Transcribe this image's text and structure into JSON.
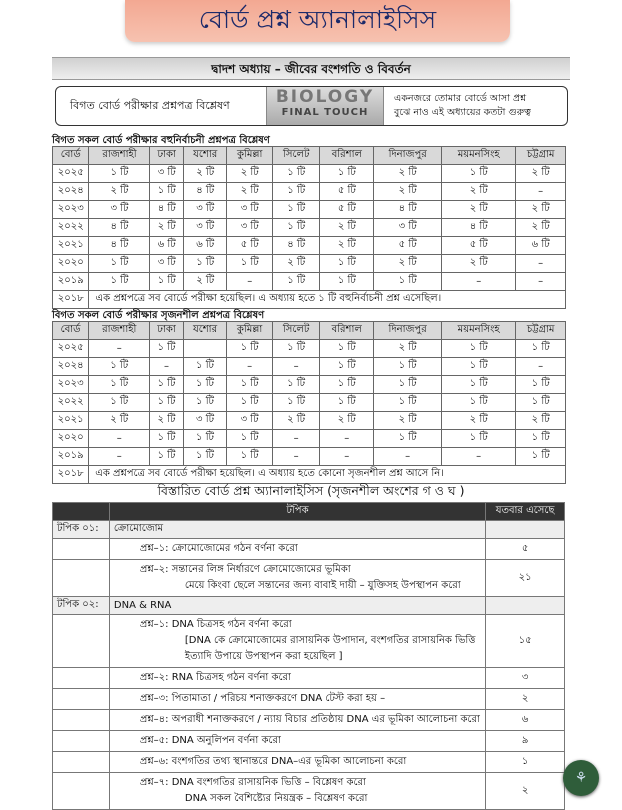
{
  "title": "বোর্ড প্রশ্ন অ্যানালাইসিস",
  "chapter": "দ্বাদশ অধ্যায় – জীবের বংশগতি ও বিবর্তন",
  "info": {
    "left": "বিগত বোর্ড পরীক্ষার  প্রশ্নপত্র বিশ্লেষণ",
    "logo_top": "BIOLOGY",
    "logo_bottom": "FINAL TOUCH",
    "right_line1": "একনজরে তোমার বোর্ডে আসা প্রশ্ন",
    "right_line2": "বুঝে নাও এই অধ্যায়ের কতটা গুরুত্ব"
  },
  "headers": [
    "বোর্ড",
    "রাজশাহী",
    "ঢাকা",
    "যশোর",
    "কুমিল্লা",
    "সিলেট",
    "বরিশাল",
    "দিনাজপুর",
    "ময়মনসিংহ",
    "চট্টগ্রাম"
  ],
  "mcq": {
    "caption": "বিগত সকল বোর্ড পরীক্ষার বহুনির্বাচনী প্রশ্নপত্র বিশ্লেষণ",
    "rows": [
      [
        "২০২৫",
        "১ টি",
        "৩ টি",
        "২ টি",
        "২ টি",
        "১ টি",
        "১ টি",
        "২ টি",
        "১ টি",
        "২ টি"
      ],
      [
        "২০২৪",
        "২ টি",
        "১ টি",
        "৪ টি",
        "২ টি",
        "১ টি",
        "৫ টি",
        "২ টি",
        "২ টি",
        "–"
      ],
      [
        "২০২৩",
        "৩ টি",
        "৪ টি",
        "৩ টি",
        "৩ টি",
        "১ টি",
        "৫ টি",
        "৪ টি",
        "২ টি",
        "২ টি"
      ],
      [
        "২০২২",
        "৪ টি",
        "২ টি",
        "৩ টি",
        "৩ টি",
        "১ টি",
        "২ টি",
        "৩ টি",
        "৪ টি",
        "২ টি"
      ],
      [
        "২০২১",
        "৪ টি",
        "৬ টি",
        "৬ টি",
        "৫ টি",
        "৪ টি",
        "২ টি",
        "৫ টি",
        "৫ টি",
        "৬ টি"
      ],
      [
        "২০২০",
        "১ টি",
        "৩ টি",
        "১ টি",
        "১ টি",
        "২ টি",
        "১ টি",
        "২ টি",
        "২ টি",
        "–"
      ],
      [
        "২০১৯",
        "১ টি",
        "১ টি",
        "২ টি",
        "–",
        "১ টি",
        "১ টি",
        "১ টি",
        "–",
        "–"
      ]
    ],
    "last_year": "২০১৮",
    "last_note": "এক প্রশ্নপত্রে সব বোর্ডে পরীক্ষা হয়েছিল। এ অধ্যায় হতে ১ টি বহুনির্বাচনী প্রশ্ন এসেছিল।"
  },
  "cq": {
    "caption": "বিগত সকল বোর্ড পরীক্ষার সৃজনশীল প্রশ্নপত্র বিশ্লেষণ",
    "rows": [
      [
        "২০২৫",
        "–",
        "১ টি",
        "",
        "১ টি",
        "১ টি",
        "১ টি",
        "২ টি",
        "১ টি",
        "১ টি"
      ],
      [
        "২০২৪",
        "১ টি",
        "–",
        "১ টি",
        "–",
        "–",
        "১ টি",
        "১ টি",
        "১ টি",
        "–"
      ],
      [
        "২০২৩",
        "১ টি",
        "১ টি",
        "১ টি",
        "১ টি",
        "১ টি",
        "১ টি",
        "১ টি",
        "১ টি",
        "১ টি"
      ],
      [
        "২০২২",
        "১ টি",
        "১ টি",
        "১ টি",
        "১ টি",
        "১ টি",
        "১ টি",
        "১ টি",
        "১ টি",
        "১ টি"
      ],
      [
        "২০২১",
        "২ টি",
        "২ টি",
        "৩ টি",
        "৩ টি",
        "২ টি",
        "২ টি",
        "২ টি",
        "২ টি",
        "২ টি"
      ],
      [
        "২০২০",
        "–",
        "১ টি",
        "১ টি",
        "১ টি",
        "–",
        "–",
        "১ টি",
        "১ টি",
        "১ টি"
      ],
      [
        "২০১৯",
        "–",
        "১ টি",
        "১ টি",
        "১ টি",
        "–",
        "–",
        "–",
        "–",
        "১ টি"
      ]
    ],
    "last_year": "২০১৮",
    "last_note": "এক প্রশ্নপত্রে সব বোর্ডে পরীক্ষা হয়েছিল। এ অধ্যায় হতে কোনো সৃজনশীল প্রশ্ন আসে নি।"
  },
  "detail": {
    "title": "বিস্তারিত বোর্ড প্রশ্ন অ্যানালাইসিস (সৃজনশীল অংশের গ ও ঘ )",
    "col_topic": "টপিক",
    "col_count": "যতবার এসেছে",
    "topics": [
      {
        "label": "টপিক ০১:",
        "name": "ক্রোমোজোম",
        "questions": [
          {
            "text": "প্রশ্ন–১:  ক্রোমোজোমের গঠন বর্ণনা করো",
            "sub": "",
            "count": "৫"
          },
          {
            "text": "প্রশ্ন–২:  সন্তানের লিঙ্গ নির্ধারণে ক্রোমোজোমের ভূমিকা",
            "sub": "মেয়ে কিংবা ছেলে সন্তানের জন্য বাবাই দায়ী – যুক্তিসহ উপস্থাপন করো",
            "count": "২১"
          }
        ]
      },
      {
        "label": "টপিক ০২:",
        "name": "DNA & RNA",
        "questions": [
          {
            "text": "প্রশ্ন–১:  DNA  চিত্রসহ গঠন বর্ণনা করো",
            "sub": "[DNA কে ক্রোমোজোমের রাসায়নিক উপাদান,  বংশগতির রাসায়নিক ভিত্তি ইত্যাদি উপায়ে উপস্থাপন করা হয়েছিল ]",
            "count": "১৫"
          },
          {
            "text": "প্রশ্ন–২:  RNA  চিত্রসহ গঠন বর্ণনা করো",
            "sub": "",
            "count": "৩"
          },
          {
            "text": "প্রশ্ন–৩:  পিতামাতা / পরিচয় শনাক্তকরণে DNA টেস্ট করা হয় –",
            "sub": "",
            "count": "২"
          },
          {
            "text": "প্রশ্ন–৪:  অপরাধী শনাক্তকরণে / ন্যায় বিচার প্রতিষ্ঠায় DNA এর ভূমিকা আলোচনা করো",
            "sub": "",
            "count": "৬"
          },
          {
            "text": "প্রশ্ন–৫:  DNA অনুলিপন বর্ণনা করো",
            "sub": "",
            "count": "৯"
          },
          {
            "text": "প্রশ্ন–৬:  বংশগতির তথ্য স্থানান্তরে DNA–এর ভূমিকা আলোচনা করো",
            "sub": "",
            "count": "১"
          },
          {
            "text": "প্রশ্ন–৭:  DNA বংশগতির রাসায়নিক ভিত্তি – বিশ্লেষণ করো",
            "sub": "DNA সকল বৈশিষ্ট্যের নিয়ন্ত্রক – বিশ্লেষণ করো",
            "count": "২"
          }
        ]
      }
    ]
  },
  "fab_icon": "book-tree-icon",
  "colors": {
    "banner": "#f3a892",
    "banner_text": "#1c2a6a",
    "header_dark": "#333333",
    "fab": "#2f5d3a"
  }
}
